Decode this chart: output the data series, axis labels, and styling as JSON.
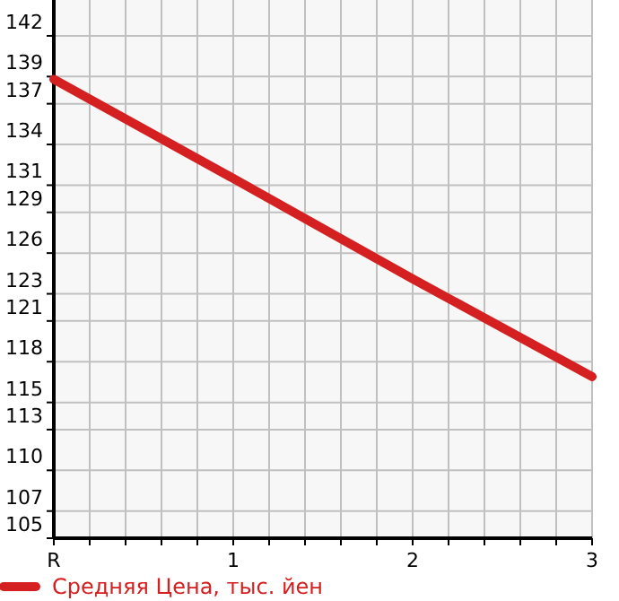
{
  "chart_data": {
    "type": "line",
    "x": [
      0,
      1,
      2,
      3
    ],
    "series": [
      {
        "name": "Средняя Цена, тыс. йен",
        "color": "#d42020",
        "values": [
          138.8,
          131.5,
          124.1,
          116.9
        ]
      }
    ],
    "xlim": [
      0,
      3
    ],
    "xticks": [
      {
        "value": 0,
        "label": "R"
      },
      {
        "value": 0.2,
        "label": null
      },
      {
        "value": 0.4,
        "label": null
      },
      {
        "value": 0.6,
        "label": null
      },
      {
        "value": 0.8,
        "label": null
      },
      {
        "value": 1,
        "label": "1"
      },
      {
        "value": 1.2,
        "label": null
      },
      {
        "value": 1.4,
        "label": null
      },
      {
        "value": 1.6,
        "label": null
      },
      {
        "value": 1.8,
        "label": null
      },
      {
        "value": 2,
        "label": "2"
      },
      {
        "value": 2.2,
        "label": null
      },
      {
        "value": 2.4,
        "label": null
      },
      {
        "value": 2.6,
        "label": null
      },
      {
        "value": 2.8,
        "label": null
      },
      {
        "value": 3,
        "label": "3"
      }
    ],
    "ylim": [
      105,
      144.64
    ],
    "yticks": [
      105,
      107,
      110,
      113,
      115,
      118,
      121,
      123,
      126,
      129,
      131,
      134,
      137,
      139,
      142
    ],
    "grid": true,
    "legend": "bottom",
    "marker": "none",
    "line_style": "solid"
  }
}
